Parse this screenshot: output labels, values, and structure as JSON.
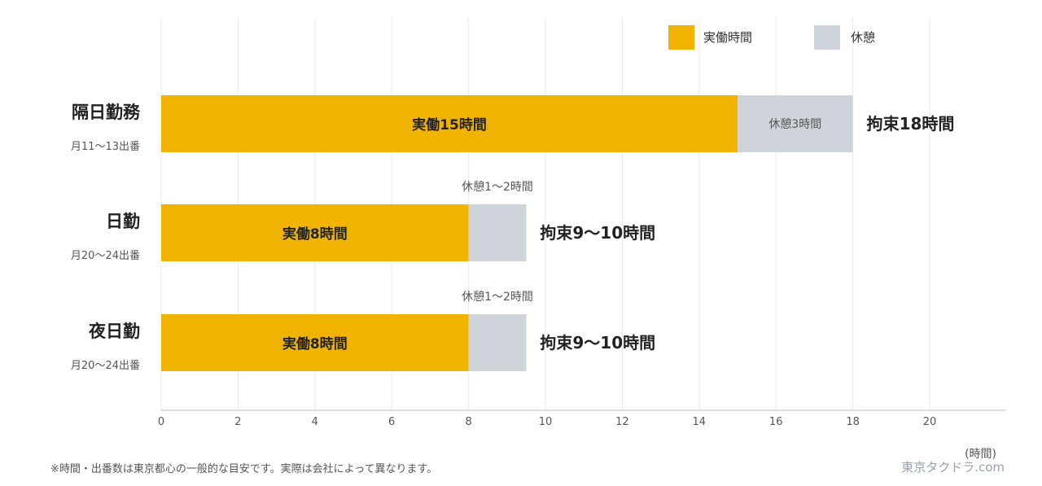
{
  "chart_data": {
    "type": "bar",
    "orientation": "horizontal",
    "stacked": true,
    "legend": [
      "実働時間",
      "休憩"
    ],
    "legend_position": "top-right",
    "x_unit_label": "(時間)",
    "xlim": [
      0,
      22
    ],
    "x_ticks": [
      0,
      2,
      4,
      6,
      8,
      10,
      12,
      14,
      16,
      18,
      20
    ],
    "grid": true,
    "colors": {
      "work": "#f0b400",
      "rest": "#cfd3da",
      "grid": "#e8e8e8"
    },
    "rows": [
      {
        "label": "隔日勤務",
        "sublabel": "月11〜13出番",
        "work": 15,
        "rest": 3,
        "work_label": "実働15時間",
        "rest_label": "休憩3時間",
        "rest_label_position": "inside",
        "total_label": "拘束18時間"
      },
      {
        "label": "日勤",
        "sublabel": "月20〜24出番",
        "work": 8,
        "rest": 1.5,
        "work_label": "実働8時間",
        "rest_label": "休憩1〜2時間",
        "rest_label_position": "above",
        "total_label": "拘束9〜10時間"
      },
      {
        "label": "夜日勤",
        "sublabel": "月20〜24出番",
        "work": 8,
        "rest": 1.5,
        "work_label": "実働8時間",
        "rest_label": "休憩1〜2時間",
        "rest_label_position": "above",
        "total_label": "拘束9〜10時間"
      }
    ]
  },
  "footnote": "※時間・出番数は東京都心の一般的な目安です。実際は会社によって異なります。",
  "brand": "東京タクドラ.com"
}
